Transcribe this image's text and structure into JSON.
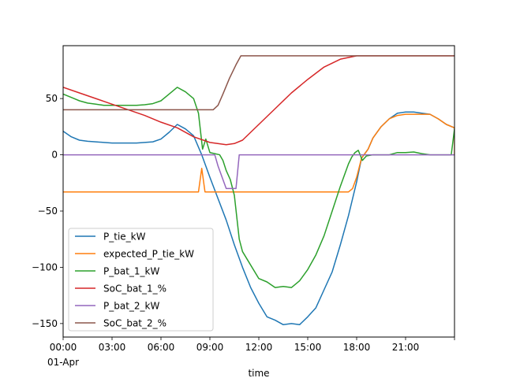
{
  "chart_data": {
    "type": "line",
    "title": "",
    "xlabel": "time",
    "ylabel": "",
    "xlim_hours": [
      0,
      24
    ],
    "ylim": [
      -162,
      97
    ],
    "grid": false,
    "legend_position": "lower-left",
    "x_ticks": [
      {
        "h": 0,
        "label": "00:00",
        "sublabel": "01-Apr"
      },
      {
        "h": 3,
        "label": "03:00"
      },
      {
        "h": 6,
        "label": "06:00"
      },
      {
        "h": 9,
        "label": "09:00"
      },
      {
        "h": 12,
        "label": "12:00"
      },
      {
        "h": 15,
        "label": "15:00"
      },
      {
        "h": 18,
        "label": "18:00"
      },
      {
        "h": 21,
        "label": "21:00"
      },
      {
        "h": 24,
        "label": ""
      }
    ],
    "y_ticks": [
      {
        "v": 50,
        "label": "50"
      },
      {
        "v": 0,
        "label": "0"
      },
      {
        "v": -50,
        "label": "−50"
      },
      {
        "v": -100,
        "label": "−100"
      },
      {
        "v": -150,
        "label": "−150"
      }
    ],
    "series": [
      {
        "name": "P_tie_kW",
        "color": "#1f77b4",
        "points": [
          [
            0,
            21
          ],
          [
            0.5,
            16
          ],
          [
            1,
            13
          ],
          [
            1.5,
            12
          ],
          [
            2,
            11.5
          ],
          [
            2.5,
            11
          ],
          [
            3,
            10.5
          ],
          [
            4,
            10.5
          ],
          [
            4.5,
            10.5
          ],
          [
            5,
            11
          ],
          [
            5.5,
            11.5
          ],
          [
            6,
            14
          ],
          [
            6.5,
            20
          ],
          [
            7,
            27
          ],
          [
            7.5,
            23
          ],
          [
            8,
            17
          ],
          [
            8.5,
            0
          ],
          [
            9,
            -20
          ],
          [
            10,
            -58
          ],
          [
            10.5,
            -80
          ],
          [
            11,
            -100
          ],
          [
            11.5,
            -118
          ],
          [
            12,
            -132
          ],
          [
            12.5,
            -144
          ],
          [
            13,
            -147
          ],
          [
            13.5,
            -151
          ],
          [
            14,
            -150
          ],
          [
            14.5,
            -151
          ],
          [
            15,
            -144
          ],
          [
            15.5,
            -136
          ],
          [
            16,
            -120
          ],
          [
            16.5,
            -104
          ],
          [
            17,
            -80
          ],
          [
            17.5,
            -54
          ],
          [
            18,
            -24
          ],
          [
            18.3,
            -3
          ],
          [
            18.7,
            5
          ],
          [
            19,
            15
          ],
          [
            19.5,
            25
          ],
          [
            20,
            32
          ],
          [
            20.5,
            37
          ],
          [
            21,
            38
          ],
          [
            21.5,
            38
          ],
          [
            22,
            37
          ],
          [
            22.5,
            36
          ],
          [
            23,
            32
          ],
          [
            23.5,
            27
          ],
          [
            24,
            24
          ]
        ]
      },
      {
        "name": "expected_P_tie_kW",
        "color": "#ff7f0e",
        "points": [
          [
            0,
            -33
          ],
          [
            3,
            -33
          ],
          [
            6,
            -33
          ],
          [
            8.3,
            -33
          ],
          [
            8.5,
            -12
          ],
          [
            8.7,
            -33
          ],
          [
            12,
            -33
          ],
          [
            15,
            -33
          ],
          [
            17.5,
            -33
          ],
          [
            17.75,
            -30
          ],
          [
            18,
            -20
          ],
          [
            18.3,
            -3
          ],
          [
            18.7,
            5
          ],
          [
            19,
            15
          ],
          [
            19.5,
            25
          ],
          [
            20,
            32
          ],
          [
            20.5,
            35
          ],
          [
            21,
            36
          ],
          [
            22,
            36
          ],
          [
            22.5,
            36
          ],
          [
            23,
            32
          ],
          [
            23.5,
            27
          ],
          [
            24,
            24
          ],
          [
            24,
            0
          ]
        ]
      },
      {
        "name": "P_bat_1_kW",
        "color": "#2ca02c",
        "points": [
          [
            0,
            54
          ],
          [
            0.5,
            51
          ],
          [
            1,
            48
          ],
          [
            1.5,
            46
          ],
          [
            2,
            45
          ],
          [
            2.5,
            44
          ],
          [
            3,
            44
          ],
          [
            4,
            44
          ],
          [
            4.5,
            44
          ],
          [
            5,
            44.5
          ],
          [
            5.5,
            45.5
          ],
          [
            6,
            48
          ],
          [
            6.5,
            54
          ],
          [
            7,
            60
          ],
          [
            7.5,
            56
          ],
          [
            8,
            50
          ],
          [
            8.3,
            37
          ],
          [
            8.55,
            5
          ],
          [
            8.75,
            14
          ],
          [
            9,
            2
          ],
          [
            9.3,
            1
          ],
          [
            9.6,
            0
          ],
          [
            9.8,
            -5
          ],
          [
            10,
            -14
          ],
          [
            10.25,
            -22
          ],
          [
            10.5,
            -36
          ],
          [
            10.8,
            -75
          ],
          [
            11,
            -86
          ],
          [
            12,
            -110
          ],
          [
            12.5,
            -113
          ],
          [
            13,
            -118
          ],
          [
            13.5,
            -117
          ],
          [
            14,
            -118
          ],
          [
            14.5,
            -112
          ],
          [
            15,
            -102
          ],
          [
            15.5,
            -89
          ],
          [
            16,
            -72
          ],
          [
            16.5,
            -50
          ],
          [
            17,
            -28
          ],
          [
            17.5,
            -8
          ],
          [
            17.7,
            -2
          ],
          [
            17.9,
            2
          ],
          [
            18.1,
            4
          ],
          [
            18.35,
            -5
          ],
          [
            18.6,
            -1
          ],
          [
            19,
            0
          ],
          [
            19.5,
            0
          ],
          [
            20,
            0
          ],
          [
            20.5,
            2
          ],
          [
            21,
            2
          ],
          [
            21.5,
            2.5
          ],
          [
            22,
            1
          ],
          [
            22.5,
            0
          ],
          [
            23,
            0
          ],
          [
            23.5,
            0
          ],
          [
            23.8,
            0
          ],
          [
            24,
            23
          ]
        ]
      },
      {
        "name": "SoC_bat_1_%",
        "color": "#d62728",
        "points": [
          [
            0,
            60
          ],
          [
            1,
            55
          ],
          [
            2,
            50
          ],
          [
            3,
            45
          ],
          [
            4,
            40
          ],
          [
            5,
            35
          ],
          [
            6,
            29
          ],
          [
            7,
            24
          ],
          [
            8,
            16
          ],
          [
            9,
            11
          ],
          [
            10,
            9
          ],
          [
            10.5,
            10
          ],
          [
            11,
            13
          ],
          [
            11.5,
            20
          ],
          [
            12,
            27
          ],
          [
            13,
            41
          ],
          [
            14,
            55
          ],
          [
            15,
            67
          ],
          [
            16,
            78
          ],
          [
            17,
            85
          ],
          [
            18,
            88
          ],
          [
            19,
            88
          ],
          [
            20,
            88
          ],
          [
            21,
            88
          ],
          [
            22,
            88
          ],
          [
            23,
            88
          ],
          [
            24,
            88
          ]
        ]
      },
      {
        "name": "P_bat_2_kW",
        "color": "#9467bd",
        "points": [
          [
            0,
            0
          ],
          [
            3,
            0
          ],
          [
            6,
            0
          ],
          [
            8.5,
            0
          ],
          [
            9.3,
            0
          ],
          [
            9.5,
            -10
          ],
          [
            9.8,
            -22
          ],
          [
            10,
            -30
          ],
          [
            10.5,
            -30
          ],
          [
            10.6,
            -30
          ],
          [
            10.8,
            0
          ],
          [
            12,
            0
          ],
          [
            15,
            0
          ],
          [
            18,
            0
          ],
          [
            21,
            0
          ],
          [
            24,
            0
          ]
        ]
      },
      {
        "name": "SoC_bat_2_%",
        "color": "#8c564b",
        "points": [
          [
            0,
            40
          ],
          [
            3,
            40
          ],
          [
            6,
            40
          ],
          [
            9.2,
            40
          ],
          [
            9.5,
            44
          ],
          [
            9.8,
            54
          ],
          [
            10.2,
            68
          ],
          [
            10.6,
            80
          ],
          [
            10.9,
            88
          ],
          [
            12,
            88
          ],
          [
            15,
            88
          ],
          [
            18,
            88
          ],
          [
            21,
            88
          ],
          [
            24,
            88
          ]
        ]
      }
    ]
  }
}
